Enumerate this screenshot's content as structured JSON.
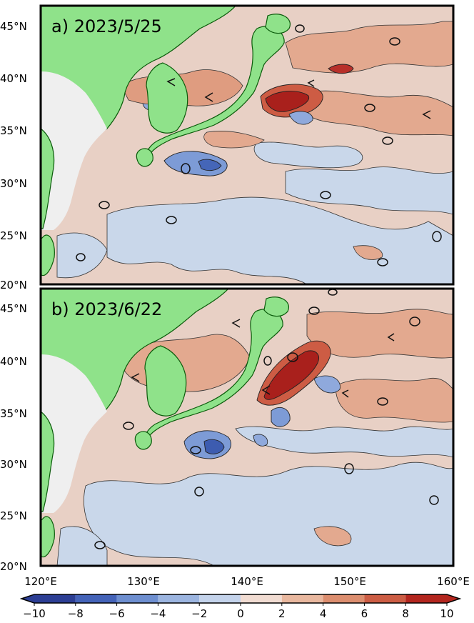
{
  "panels": [
    {
      "title": "a) 2023/5/25"
    },
    {
      "title": "b) 2023/6/22"
    }
  ],
  "lat_ticks": [
    "45°N",
    "40°N",
    "35°N",
    "30°N",
    "25°N",
    "20°N"
  ],
  "lon_ticks": [
    "120°E",
    "130°E",
    "140°E",
    "150°E",
    "160°E"
  ],
  "colorbar": {
    "ticks": [
      "−10",
      "−8",
      "−6",
      "−4",
      "−2",
      "0",
      "2",
      "4",
      "6",
      "8",
      "10"
    ],
    "colors": [
      "#2c3e94",
      "#4463b8",
      "#6e8fd0",
      "#9cb5e0",
      "#c4d3eb",
      "#f1dcd2",
      "#e9b89f",
      "#dc8e6f",
      "#cc5d44",
      "#b3261e"
    ]
  },
  "colors": {
    "land": "#8fe28a",
    "coast": "#0a5a0a",
    "ocean_base": "#e7cfc4",
    "ocean_cool": "#c8d6ea",
    "sea_ice_mask": "#efefef"
  }
}
